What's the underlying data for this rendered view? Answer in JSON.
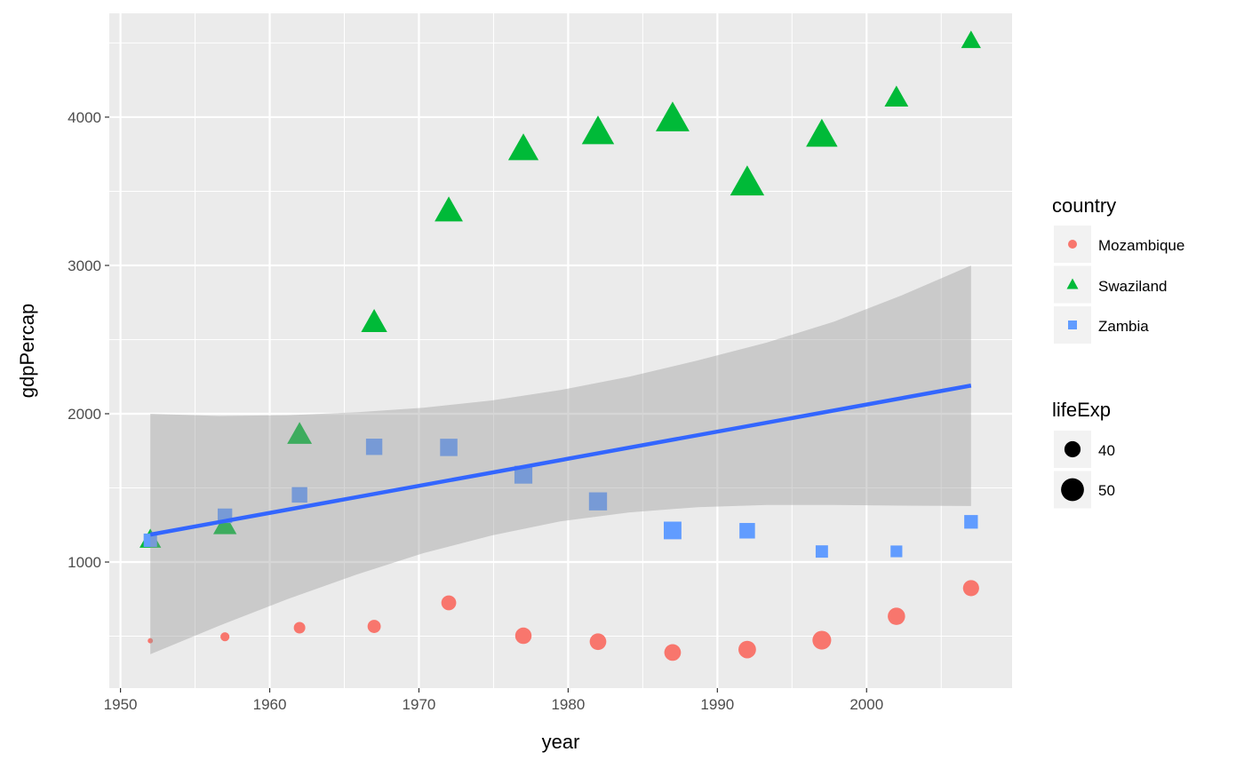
{
  "chart_data": {
    "type": "scatter",
    "xlabel": "year",
    "ylabel": "gdpPercap",
    "xlim": [
      1949.25,
      2009.75
    ],
    "ylim": [
      150,
      4700
    ],
    "x_ticks": [
      "1950",
      "1960",
      "1970",
      "1980",
      "1990",
      "2000"
    ],
    "y_ticks": [
      "1000",
      "2000",
      "3000",
      "4000"
    ],
    "grid": true,
    "legend_placement": "right",
    "colors": {
      "Mozambique": "#F8766D",
      "Swaziland": "#00BA38",
      "Zambia": "#619CFF",
      "trend": "#3366FF",
      "band": "#999999",
      "panel": "#EBEBEB"
    },
    "series": [
      {
        "name": "Mozambique",
        "shape": "circle",
        "x": [
          1952,
          1957,
          1962,
          1967,
          1972,
          1977,
          1982,
          1987,
          1992,
          1997,
          2002,
          2007
        ],
        "y": [
          469,
          496,
          557,
          566,
          725,
          503,
          463,
          390,
          410,
          473,
          634,
          824
        ],
        "lifeExp": [
          31.3,
          33.8,
          36.2,
          38.1,
          40.3,
          42.5,
          42.8,
          42.9,
          44.3,
          46.3,
          44.0,
          42.1
        ]
      },
      {
        "name": "Swaziland",
        "shape": "triangle",
        "x": [
          1952,
          1957,
          1962,
          1967,
          1972,
          1977,
          1982,
          1987,
          1992,
          1997,
          2002,
          2007
        ],
        "y": [
          1148,
          1244,
          1856,
          2613,
          3364,
          3782,
          3895,
          3985,
          3553,
          3876,
          4128,
          4513
        ],
        "lifeExp": [
          41.4,
          43.4,
          44.99,
          46.6,
          49.55,
          52.54,
          55.56,
          57.68,
          58.47,
          54.29,
          43.87,
          39.6
        ]
      },
      {
        "name": "Zambia",
        "shape": "square",
        "x": [
          1952,
          1957,
          1962,
          1967,
          1972,
          1977,
          1982,
          1987,
          1992,
          1997,
          2002,
          2007
        ],
        "y": [
          1147,
          1312,
          1453,
          1777,
          1773,
          1589,
          1409,
          1213,
          1211,
          1071,
          1072,
          1271
        ],
        "lifeExp": [
          42.0,
          44.1,
          46.0,
          47.8,
          50.1,
          51.4,
          51.8,
          50.8,
          46.1,
          40.2,
          39.2,
          42.4
        ]
      }
    ],
    "trend": {
      "method": "linear",
      "x": [
        1952,
        2007
      ],
      "y": [
        1185,
        2190
      ],
      "band_x": [
        1952,
        1956.6,
        1961.2,
        1965.8,
        1970.3,
        1974.9,
        1979.5,
        1984.1,
        1988.7,
        1993.3,
        1997.8,
        2002.4,
        2007
      ],
      "band_lower": [
        378,
        570,
        750,
        915,
        1060,
        1180,
        1275,
        1335,
        1370,
        1385,
        1385,
        1380,
        1378
      ],
      "band_upper": [
        2000,
        1985,
        1990,
        2010,
        2040,
        2090,
        2160,
        2250,
        2360,
        2480,
        2620,
        2800,
        3000
      ]
    },
    "legends": {
      "color": {
        "title": "country",
        "entries": [
          "Mozambique",
          "Swaziland",
          "Zambia"
        ]
      },
      "size": {
        "title": "lifeExp",
        "entries": [
          "40",
          "50"
        ]
      }
    }
  }
}
